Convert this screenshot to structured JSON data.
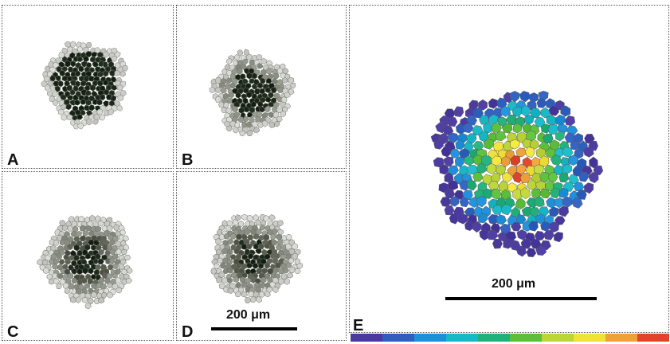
{
  "panels": {
    "a": {
      "label": "A"
    },
    "b": {
      "label": "B"
    },
    "c": {
      "label": "C"
    },
    "d": {
      "label": "D"
    },
    "e": {
      "label": "E"
    }
  },
  "scale_bars": {
    "small": {
      "label": "200 μm"
    },
    "large": {
      "label": "200 μm"
    }
  },
  "colors": {
    "gray_light": "#cfd0cc",
    "gray_mid": "#8e9186",
    "gray_dark": "#565b4d",
    "core_dark": "#1b2619",
    "heat": [
      "#4a3aa0",
      "#2e5fbf",
      "#1e8fd8",
      "#18b8c8",
      "#22b07a",
      "#5cbf3a",
      "#bcd63a",
      "#f0e23a",
      "#f0a03a",
      "#e0452a"
    ]
  }
}
